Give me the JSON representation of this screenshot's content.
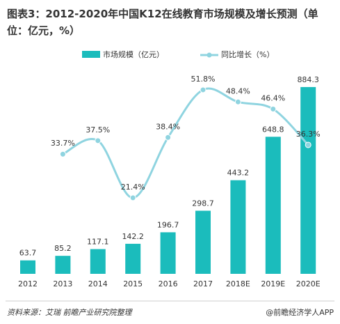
{
  "chart_data": {
    "type": "bar-line",
    "title": "图表3：2012-2020年中国K12在线教育市场规模及增长预测（单位：亿元，%）",
    "categories": [
      "2012",
      "2013",
      "2014",
      "2015",
      "2016",
      "2017",
      "2018E",
      "2019E",
      "2020E"
    ],
    "series": [
      {
        "name": "市场规模（亿元）",
        "type": "bar",
        "color": "#1bbcbc",
        "values": [
          63.7,
          85.2,
          117.1,
          142.2,
          196.7,
          298.7,
          443.2,
          648.8,
          884.3
        ]
      },
      {
        "name": "同比增长（%）",
        "type": "line",
        "axis": "y2",
        "color": "#8fd4e0",
        "values": [
          null,
          33.7,
          37.5,
          21.4,
          38.4,
          51.8,
          48.4,
          46.4,
          36.3
        ],
        "value_labels": [
          null,
          "33.7%",
          "37.5%",
          "21.4%",
          "38.4%",
          "51.8%",
          "48.4%",
          "46.4%",
          "36.3%"
        ]
      }
    ],
    "ylim": [
      0,
      950
    ],
    "y2lim": [
      0,
      56.5
    ],
    "source": "资料来源：艾瑞 前瞻产业研究院整理",
    "brand": "@前瞻经济学人APP"
  }
}
